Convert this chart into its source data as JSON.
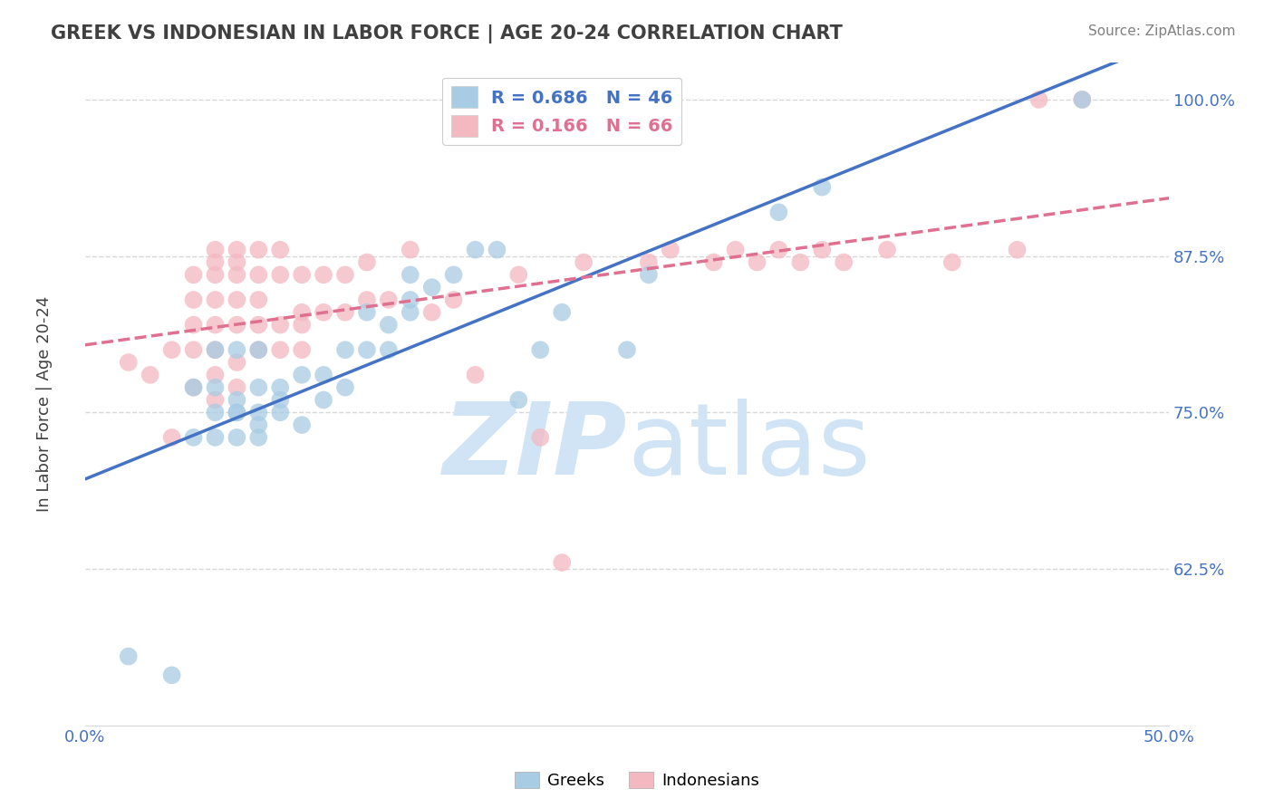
{
  "title": "GREEK VS INDONESIAN IN LABOR FORCE | AGE 20-24 CORRELATION CHART",
  "source": "Source: ZipAtlas.com",
  "ylabel": "In Labor Force | Age 20-24",
  "xlim": [
    0.0,
    0.5
  ],
  "ylim": [
    0.5,
    1.03
  ],
  "xticks": [
    0.0,
    0.1,
    0.2,
    0.3,
    0.4,
    0.5
  ],
  "xticklabels": [
    "0.0%",
    "",
    "",
    "",
    "",
    "50.0%"
  ],
  "yticks": [
    0.625,
    0.75,
    0.875,
    1.0
  ],
  "yticklabels": [
    "62.5%",
    "75.0%",
    "87.5%",
    "100.0%"
  ],
  "greek_R": 0.686,
  "greek_N": 46,
  "indonesian_R": 0.166,
  "indonesian_N": 66,
  "greek_color": "#a8cce4",
  "indonesian_color": "#f4b8c1",
  "greek_line_color": "#4472c4",
  "indonesian_line_color": "#e07090",
  "watermark_zip": "ZIP",
  "watermark_atlas": "atlas",
  "watermark_color": "#d0e4f5",
  "background_color": "#ffffff",
  "grid_color": "#d8d8d8",
  "title_color": "#404040",
  "axis_color": "#4472c4",
  "source_color": "#808080",
  "greek_x": [
    0.02,
    0.04,
    0.05,
    0.05,
    0.06,
    0.06,
    0.06,
    0.06,
    0.07,
    0.07,
    0.07,
    0.07,
    0.07,
    0.08,
    0.08,
    0.08,
    0.08,
    0.08,
    0.09,
    0.09,
    0.09,
    0.1,
    0.1,
    0.11,
    0.11,
    0.12,
    0.12,
    0.13,
    0.13,
    0.14,
    0.14,
    0.15,
    0.15,
    0.15,
    0.16,
    0.17,
    0.18,
    0.19,
    0.2,
    0.21,
    0.22,
    0.25,
    0.26,
    0.32,
    0.34,
    0.46
  ],
  "greek_y": [
    0.555,
    0.54,
    0.73,
    0.77,
    0.73,
    0.75,
    0.77,
    0.8,
    0.73,
    0.75,
    0.75,
    0.76,
    0.8,
    0.73,
    0.74,
    0.75,
    0.77,
    0.8,
    0.75,
    0.76,
    0.77,
    0.74,
    0.78,
    0.76,
    0.78,
    0.77,
    0.8,
    0.8,
    0.83,
    0.8,
    0.82,
    0.83,
    0.84,
    0.86,
    0.85,
    0.86,
    0.88,
    0.88,
    0.76,
    0.8,
    0.83,
    0.8,
    0.86,
    0.91,
    0.93,
    1.0
  ],
  "indonesian_x": [
    0.02,
    0.03,
    0.04,
    0.04,
    0.05,
    0.05,
    0.05,
    0.05,
    0.05,
    0.06,
    0.06,
    0.06,
    0.06,
    0.06,
    0.06,
    0.06,
    0.06,
    0.07,
    0.07,
    0.07,
    0.07,
    0.07,
    0.07,
    0.07,
    0.08,
    0.08,
    0.08,
    0.08,
    0.08,
    0.09,
    0.09,
    0.09,
    0.09,
    0.1,
    0.1,
    0.1,
    0.1,
    0.11,
    0.11,
    0.12,
    0.12,
    0.13,
    0.13,
    0.14,
    0.15,
    0.16,
    0.17,
    0.18,
    0.2,
    0.21,
    0.22,
    0.23,
    0.26,
    0.27,
    0.29,
    0.3,
    0.31,
    0.32,
    0.33,
    0.34,
    0.35,
    0.37,
    0.4,
    0.43,
    0.44,
    0.46
  ],
  "indonesian_y": [
    0.79,
    0.78,
    0.73,
    0.8,
    0.77,
    0.8,
    0.82,
    0.84,
    0.86,
    0.76,
    0.78,
    0.8,
    0.82,
    0.84,
    0.86,
    0.87,
    0.88,
    0.77,
    0.79,
    0.82,
    0.84,
    0.86,
    0.87,
    0.88,
    0.8,
    0.82,
    0.84,
    0.86,
    0.88,
    0.8,
    0.82,
    0.86,
    0.88,
    0.8,
    0.82,
    0.83,
    0.86,
    0.83,
    0.86,
    0.83,
    0.86,
    0.84,
    0.87,
    0.84,
    0.88,
    0.83,
    0.84,
    0.78,
    0.86,
    0.73,
    0.63,
    0.87,
    0.87,
    0.88,
    0.87,
    0.88,
    0.87,
    0.88,
    0.87,
    0.88,
    0.87,
    0.88,
    0.87,
    0.88,
    1.0,
    1.0
  ]
}
